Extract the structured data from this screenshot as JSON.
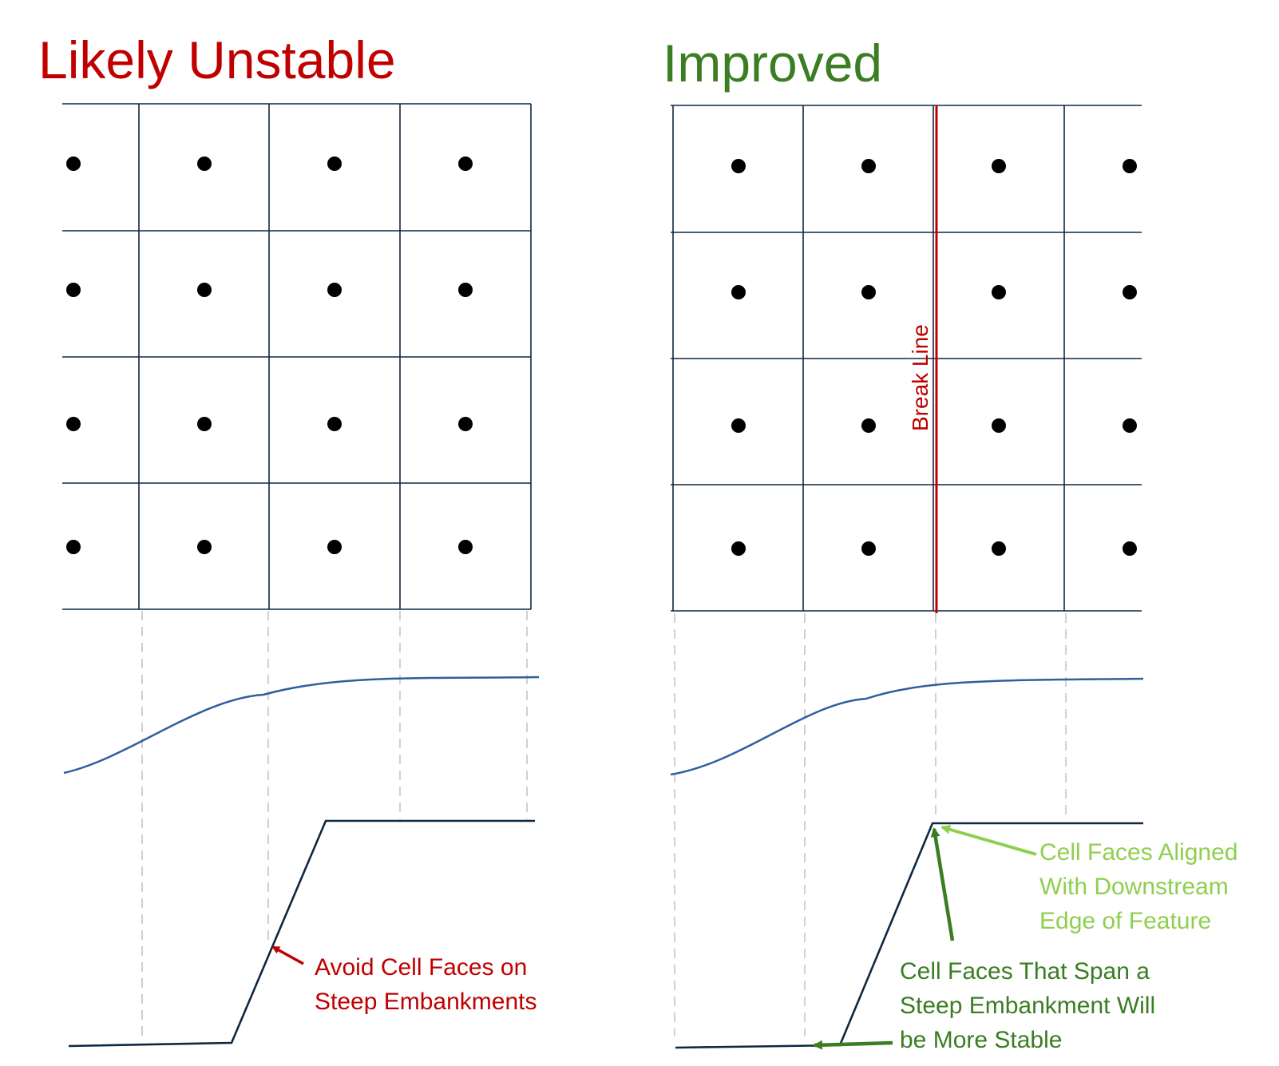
{
  "colors": {
    "red": "#c00000",
    "dark_green": "#3a7d22",
    "light_green": "#8fcf4f",
    "grid": "#0e2841",
    "water_curve": "#2f5f9e",
    "guide": "#d0d0d0",
    "node": "#000000",
    "break_line": "#c00000"
  },
  "left_panel": {
    "title": "Likely Unstable",
    "grid": {
      "columns": 4,
      "rows": 4,
      "nodes_per_row": 4
    },
    "annotation": {
      "line1": "Avoid Cell Faces on",
      "line2": "Steep Embankments"
    }
  },
  "right_panel": {
    "title": "Improved",
    "grid": {
      "columns": 4,
      "rows": 4,
      "nodes_per_row": 4
    },
    "break_line_label": "Break Line",
    "annotation_aligned": {
      "line1": "Cell Faces Aligned",
      "line2": "With Downstream",
      "line3": "Edge of Feature"
    },
    "annotation_span": {
      "line1": "Cell Faces That Span a",
      "line2": "Steep Embankment Will",
      "line3": "be More Stable"
    }
  }
}
